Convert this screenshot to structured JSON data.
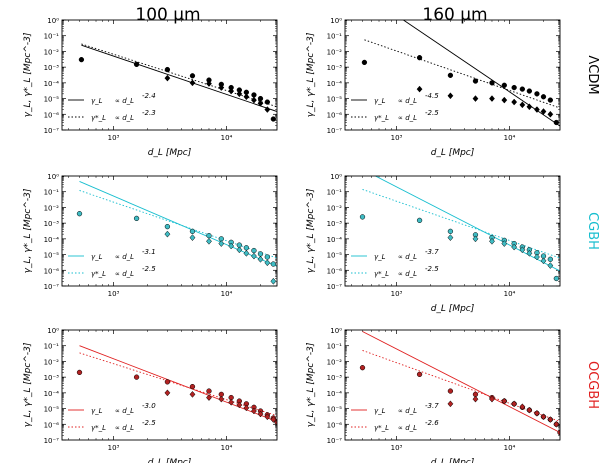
{
  "chart_data": {
    "type": "scatter",
    "column_titles": [
      "100 μm",
      "160 μm"
    ],
    "row_labels": [
      "ΛCDM",
      "CGBH",
      "OCGBH"
    ],
    "row_colors": [
      "#000000",
      "#17becf",
      "#e02020"
    ],
    "marker_fills": [
      "#000000",
      "#3fbcc4",
      "#b22222"
    ],
    "xlabel": "d_L [Mpc]",
    "ylabel": "γ_L, γ*_L [Mpc^-3]",
    "xscale": "log",
    "yscale": "log",
    "xlim": [
      350,
      28000
    ],
    "ylim": [
      1e-07,
      1
    ],
    "x_ticks": [
      "10³",
      "10⁴"
    ],
    "y_ticks": [
      "10⁻⁷",
      "10⁻⁶",
      "10⁻⁵",
      "10⁻⁴",
      "10⁻³",
      "10⁻²",
      "10⁻¹",
      "10⁰"
    ],
    "panels": [
      {
        "row": 0,
        "col": 0,
        "has_xlabel": true,
        "legend": [
          {
            "label": "γ_L",
            "text": "∝ d_L",
            "exp": "-2.4",
            "style": "solid"
          },
          {
            "label": "γ*_L",
            "text": "∝ d_L",
            "exp": "-2.3",
            "style": "dotted"
          }
        ],
        "fit_solid": [
          [
            520,
            0.025
          ],
          [
            28000,
            1.5e-06
          ]
        ],
        "fit_dotted": [
          [
            520,
            0.03
          ],
          [
            28000,
            3e-06
          ]
        ],
        "gamma": {
          "x": [
            520,
            1600,
            3000,
            5000,
            7000,
            9000,
            11000,
            13000,
            15000,
            17500,
            20000,
            23000,
            26000
          ],
          "y": [
            0.003,
            0.0015,
            0.0007,
            0.00028,
            0.00015,
            8e-05,
            5e-05,
            3.5e-05,
            2.5e-05,
            1.7e-05,
            1e-05,
            6e-06,
            5e-07
          ]
        },
        "gamma_star": {
          "x": [
            3000,
            5000,
            7000,
            9000,
            11000,
            13000,
            15000,
            17500,
            20000,
            23000
          ],
          "y": [
            0.0002,
            0.0001,
            9e-05,
            5e-05,
            3e-05,
            2e-05,
            1.3e-05,
            8e-06,
            5e-06,
            2e-06
          ]
        }
      },
      {
        "row": 0,
        "col": 1,
        "has_xlabel": true,
        "legend": [
          {
            "label": "γ_L",
            "text": "∝ d_L",
            "exp": "-4.5",
            "style": "solid"
          },
          {
            "label": "γ*_L",
            "text": "∝ d_L",
            "exp": "-2.5",
            "style": "dotted"
          }
        ],
        "fit_solid": [
          [
            1150,
            1.0
          ],
          [
            28000,
            1.8e-07
          ]
        ],
        "fit_dotted": [
          [
            520,
            0.055
          ],
          [
            28000,
            2.5e-06
          ]
        ],
        "gamma": {
          "x": [
            520,
            1600,
            3000,
            5000,
            7000,
            9000,
            11000,
            13000,
            15000,
            17500,
            20000,
            23000,
            26000
          ],
          "y": [
            0.002,
            0.004,
            0.0003,
            0.00013,
            0.0001,
            7e-05,
            5e-05,
            4e-05,
            3e-05,
            2e-05,
            1.3e-05,
            8e-06,
            3e-07
          ]
        },
        "gamma_star": {
          "x": [
            1600,
            3000,
            5000,
            7000,
            9000,
            11000,
            13000,
            15000,
            17500,
            20000,
            23000
          ],
          "y": [
            4e-05,
            1.5e-05,
            1e-05,
            1e-05,
            8e-06,
            6e-06,
            4e-06,
            3e-06,
            2e-06,
            1.5e-06,
            1e-06
          ]
        }
      },
      {
        "row": 1,
        "col": 0,
        "has_xlabel": false,
        "legend": [
          {
            "label": "γ_L",
            "text": "∝ d_L",
            "exp": "-3.1",
            "style": "solid"
          },
          {
            "label": "γ*_L",
            "text": "∝ d_L",
            "exp": "-2.5",
            "style": "dotted"
          }
        ],
        "fit_solid": [
          [
            500,
            0.45
          ],
          [
            28000,
            1.8e-06
          ]
        ],
        "fit_dotted": [
          [
            500,
            0.12
          ],
          [
            28000,
            6e-06
          ]
        ],
        "gamma": {
          "x": [
            500,
            1600,
            3000,
            5000,
            7000,
            9000,
            11000,
            13000,
            15000,
            17500,
            20000,
            23000,
            26000
          ],
          "y": [
            0.004,
            0.002,
            0.0006,
            0.0003,
            0.00016,
            0.0001,
            6e-05,
            4e-05,
            2.7e-05,
            1.8e-05,
            1.1e-05,
            7e-06,
            2.5e-06
          ]
        },
        "gamma_star": {
          "x": [
            3000,
            5000,
            7000,
            9000,
            11000,
            13000,
            15000,
            17500,
            20000,
            23000,
            26000
          ],
          "y": [
            0.0002,
            0.00012,
            7e-05,
            5e-05,
            3.5e-05,
            2e-05,
            1.2e-05,
            8e-06,
            5e-06,
            3e-06,
            2e-07
          ]
        }
      },
      {
        "row": 1,
        "col": 1,
        "has_xlabel": true,
        "legend": [
          {
            "label": "γ_L",
            "text": "∝ d_L",
            "exp": "-3.7",
            "style": "solid"
          },
          {
            "label": "γ*_L",
            "text": "∝ d_L",
            "exp": "-2.5",
            "style": "dotted"
          }
        ],
        "fit_solid": [
          [
            650,
            1.0
          ],
          [
            28000,
            9e-07
          ]
        ],
        "fit_dotted": [
          [
            500,
            0.14
          ],
          [
            28000,
            6e-06
          ]
        ],
        "gamma": {
          "x": [
            500,
            1600,
            3000,
            5000,
            7000,
            9000,
            11000,
            13000,
            15000,
            17500,
            20000,
            23000,
            26000
          ],
          "y": [
            0.0025,
            0.0015,
            0.0003,
            0.00018,
            0.00012,
            8e-05,
            5e-05,
            3e-05,
            2e-05,
            1.3e-05,
            8e-06,
            5e-06,
            3e-07
          ]
        },
        "gamma_star": {
          "x": [
            3000,
            5000,
            7000,
            9000,
            11000,
            13000,
            15000,
            17500,
            20000,
            23000
          ],
          "y": [
            0.00012,
            0.0001,
            7e-05,
            5e-05,
            3e-05,
            2e-05,
            1.2e-05,
            7e-06,
            4e-06,
            2e-06
          ]
        }
      },
      {
        "row": 2,
        "col": 0,
        "has_xlabel": true,
        "legend": [
          {
            "label": "γ_L",
            "text": "∝ d_L",
            "exp": "-3.0",
            "style": "solid"
          },
          {
            "label": "γ*_L",
            "text": "∝ d_L",
            "exp": "-2.5",
            "style": "dotted"
          }
        ],
        "fit_solid": [
          [
            500,
            0.1
          ],
          [
            28000,
            1.5e-06
          ]
        ],
        "fit_dotted": [
          [
            500,
            0.035
          ],
          [
            28000,
            3.5e-06
          ]
        ],
        "gamma": {
          "x": [
            500,
            1600,
            3000,
            5000,
            7000,
            9000,
            11000,
            13000,
            15000,
            17500,
            20000,
            23000,
            26000,
            28000
          ],
          "y": [
            0.002,
            0.001,
            0.0005,
            0.00025,
            0.00013,
            8e-05,
            5e-05,
            3e-05,
            2e-05,
            1.2e-05,
            7e-06,
            4e-06,
            2.5e-06,
            1.5e-06
          ]
        },
        "gamma_star": {
          "x": [
            3000,
            5000,
            7000,
            9000,
            11000,
            13000,
            15000,
            17500,
            20000,
            23000,
            26000,
            28000
          ],
          "y": [
            0.0001,
            8e-05,
            5e-05,
            4e-05,
            2.5e-05,
            1.7e-05,
            1.1e-05,
            7e-06,
            4.5e-06,
            3e-06,
            2e-06,
            1.3e-06
          ]
        }
      },
      {
        "row": 2,
        "col": 1,
        "has_xlabel": true,
        "legend": [
          {
            "label": "γ_L",
            "text": "∝ d_L",
            "exp": "-3.7",
            "style": "solid"
          },
          {
            "label": "γ*_L",
            "text": "∝ d_L",
            "exp": "-2.6",
            "style": "dotted"
          }
        ],
        "fit_solid": [
          [
            500,
            0.8
          ],
          [
            28000,
            3e-07
          ]
        ],
        "fit_dotted": [
          [
            500,
            0.05
          ],
          [
            28000,
            1.5e-06
          ]
        ],
        "gamma": {
          "x": [
            500,
            1600,
            3000,
            5000,
            7000,
            9000,
            11000,
            13000,
            15000,
            17500,
            20000,
            23000,
            26000,
            28000
          ],
          "y": [
            0.004,
            0.0015,
            0.00013,
            8e-05,
            5e-05,
            3e-05,
            2e-05,
            1.2e-05,
            8e-06,
            5e-06,
            3e-06,
            2e-06,
            1e-06,
            3e-07
          ]
        },
        "gamma_star": {
          "x": [
            3000,
            5000,
            7000,
            9000,
            11000,
            13000,
            15000,
            17500,
            20000,
            23000,
            26000
          ],
          "y": [
            2e-05,
            4e-05,
            4e-05,
            3e-05,
            2e-05,
            1.3e-05,
            8e-06,
            5e-06,
            3e-06,
            2e-06,
            1e-06
          ]
        }
      }
    ]
  }
}
